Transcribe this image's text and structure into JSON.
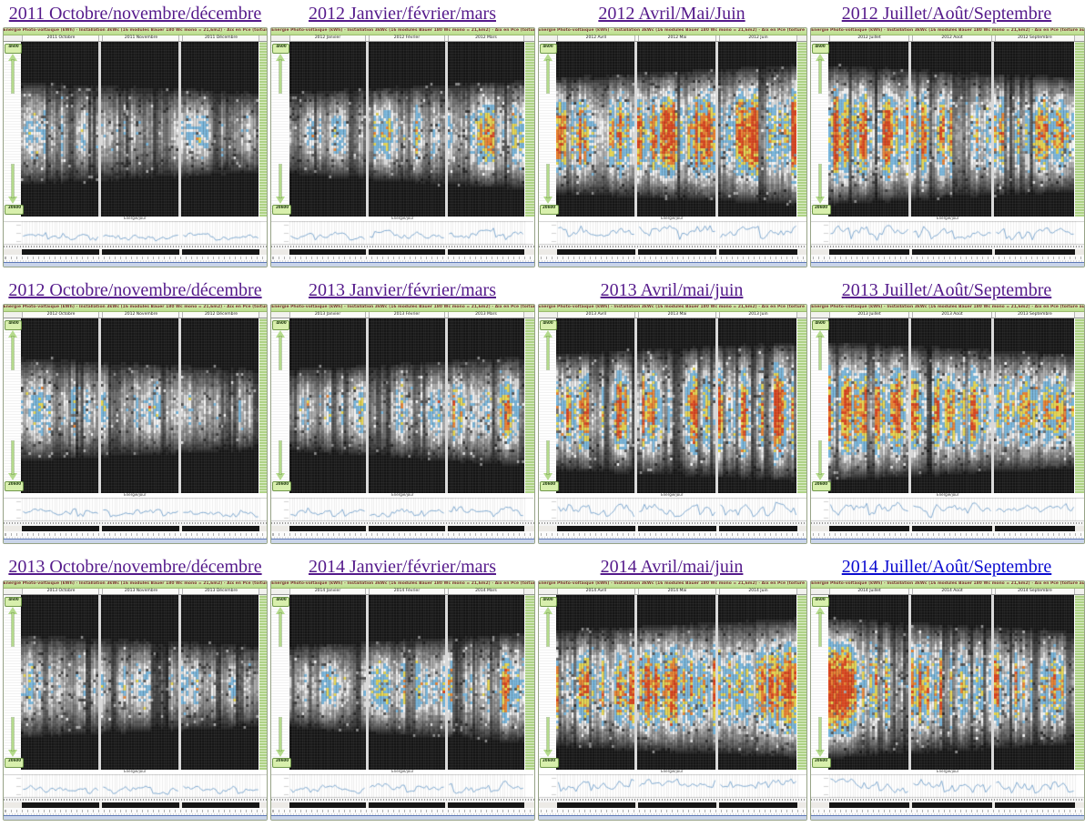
{
  "header_text": "Energie Photo-voltaïque (kWh) - Installation 3kWc (16 modules Bauer 180 Wc mono = 21,6m2) - Aix en Pce (toiture au sud, pente 22°)",
  "labels": {
    "top_arrow": "4h00",
    "bottom_arrow": "20h00",
    "chart_label": "Energie/jour"
  },
  "colors": {
    "link_visited": "#551a8b",
    "link_unvisited": "#0b0bd0",
    "panel_border": "#97a387",
    "header_green": "#c4e49c",
    "header_text": "#7c3434",
    "accent_green": "#aed285",
    "heat_blue": "#76b4da",
    "heat_yellow": "#e5d44e",
    "heat_orange": "#e77f2f",
    "heat_red": "#d8431c",
    "chart_line": "#82abd1"
  },
  "rows": [
    {
      "panels": [
        {
          "title": "2011 Octobre/novembre/décembre",
          "visited": true,
          "season": "q4",
          "months": [
            "2011 Octobre",
            "2011 Novembre",
            "2011 Décembre"
          ]
        },
        {
          "title": "2012 Janvier/février/mars",
          "visited": true,
          "season": "q1",
          "months": [
            "2012 Janvier",
            "2012 Février",
            "2012 Mars"
          ]
        },
        {
          "title": "2012 Avril/Mai/Juin",
          "visited": true,
          "season": "q2",
          "months": [
            "2012 Avril",
            "2012 Mai",
            "2012 Juin"
          ]
        },
        {
          "title": "2012 Juillet/Août/Septembre",
          "visited": true,
          "season": "q3",
          "months": [
            "2012 Juillet",
            "2012 Août",
            "2012 Septembre"
          ]
        }
      ]
    },
    {
      "panels": [
        {
          "title": "2012 Octobre/novembre/décembre",
          "visited": true,
          "season": "q4",
          "months": [
            "2012 Octobre",
            "2012 Novembre",
            "2012 Décembre"
          ]
        },
        {
          "title": "2013 Janvier/février/mars",
          "visited": true,
          "season": "q1",
          "months": [
            "2013 Janvier",
            "2013 Février",
            "2013 Mars"
          ]
        },
        {
          "title": "2013 Avril/mai/juin",
          "visited": true,
          "season": "q2",
          "months": [
            "2013 Avril",
            "2013 Mai",
            "2013 Juin"
          ]
        },
        {
          "title": "2013 Juillet/Août/Septembre",
          "visited": true,
          "season": "q3",
          "months": [
            "2013 Juillet",
            "2013 Août",
            "2013 Septembre"
          ]
        }
      ]
    },
    {
      "panels": [
        {
          "title": "2013 Octobre/novembre/décembre",
          "visited": true,
          "season": "q4",
          "months": [
            "2013 Octobre",
            "2013 Novembre",
            "2013 Décembre"
          ]
        },
        {
          "title": "2014 Janvier/février/mars",
          "visited": true,
          "season": "q1",
          "months": [
            "2014 Janvier",
            "2014 Février",
            "2014 Mars"
          ]
        },
        {
          "title": "2014 Avril/mai/juin",
          "visited": true,
          "season": "q2",
          "months": [
            "2014 Avril",
            "2014 Mai",
            "2014 Juin"
          ]
        },
        {
          "title": "2014 Juillet/Août/Septembre",
          "visited": false,
          "season": "q3",
          "months": [
            "2014 Juillet",
            "2014 Août",
            "2014 Septembre"
          ]
        }
      ]
    }
  ],
  "render_hints": {
    "columns": [
      291,
      290,
      296,
      302
    ],
    "seasons": {
      "q4": {
        "sr": [
          7.0,
          8.2
        ],
        "ss": [
          18.3,
          17.1
        ],
        "amp": [
          0.6,
          0.5
        ]
      },
      "q1": {
        "sr": [
          8.2,
          6.9
        ],
        "ss": [
          17.2,
          18.8
        ],
        "amp": [
          0.55,
          0.85
        ]
      },
      "q2": {
        "sr": [
          6.6,
          5.3
        ],
        "ss": [
          19.2,
          20.4
        ],
        "amp": [
          0.88,
          1.0
        ]
      },
      "q3": {
        "sr": [
          5.3,
          6.6
        ],
        "ss": [
          20.4,
          19.0
        ],
        "amp": [
          1.0,
          0.8
        ]
      }
    }
  }
}
